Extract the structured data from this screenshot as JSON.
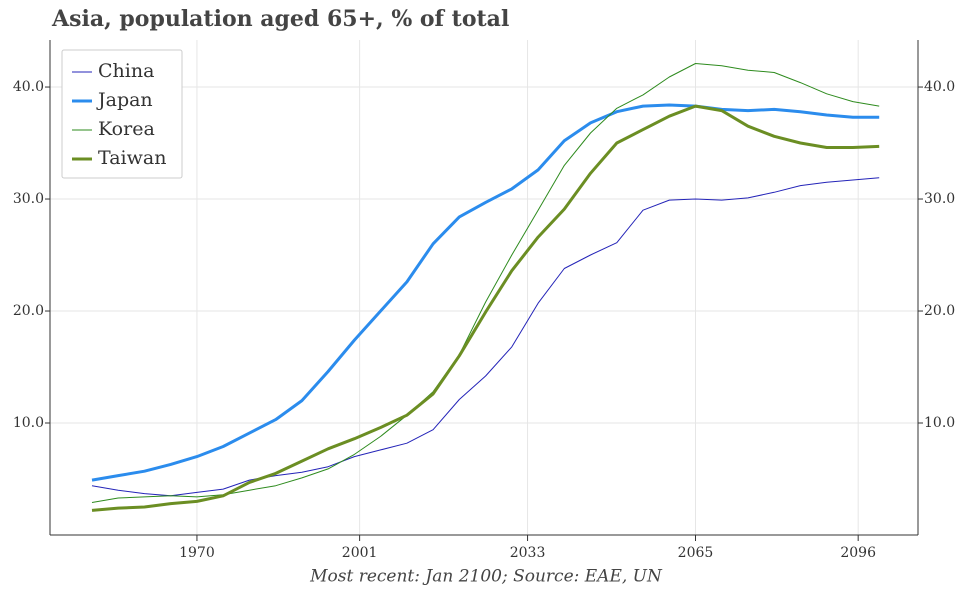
{
  "chart_data": {
    "type": "line",
    "title": "Asia, population aged 65+, % of total",
    "footnote": "Most recent: Jan 2100; Source: EAE, UN",
    "x": [
      1950,
      1955,
      1960,
      1965,
      1970,
      1975,
      1980,
      1985,
      1990,
      1995,
      2000,
      2005,
      2010,
      2015,
      2020,
      2025,
      2030,
      2035,
      2040,
      2045,
      2050,
      2055,
      2060,
      2065,
      2070,
      2075,
      2080,
      2085,
      2090,
      2095,
      2100
    ],
    "series": [
      {
        "name": "China",
        "color": "#2424b8",
        "width": 1,
        "values": [
          4.4,
          4.0,
          3.7,
          3.5,
          3.8,
          4.1,
          4.9,
          5.3,
          5.6,
          6.1,
          7.0,
          7.6,
          8.2,
          9.4,
          12.1,
          14.2,
          16.8,
          20.7,
          23.8,
          25.0,
          26.1,
          29.0,
          29.9,
          30.0,
          29.9,
          30.1,
          30.6,
          31.2,
          31.5,
          31.7,
          31.9
        ]
      },
      {
        "name": "Japan",
        "color": "#2b8ced",
        "width": 3,
        "values": [
          4.9,
          5.3,
          5.7,
          6.3,
          7.0,
          7.9,
          9.1,
          10.3,
          12.0,
          14.6,
          17.4,
          20.0,
          22.6,
          26.0,
          28.4,
          29.7,
          30.9,
          32.6,
          35.2,
          36.8,
          37.8,
          38.3,
          38.4,
          38.3,
          38.0,
          37.9,
          38.0,
          37.8,
          37.5,
          37.3,
          37.3
        ]
      },
      {
        "name": "Korea",
        "color": "#2e8b1e",
        "width": 1,
        "values": [
          2.9,
          3.3,
          3.4,
          3.5,
          3.4,
          3.6,
          4.0,
          4.4,
          5.1,
          5.9,
          7.2,
          8.8,
          10.7,
          12.8,
          16.1,
          20.8,
          25.0,
          29.0,
          33.0,
          35.9,
          38.1,
          39.3,
          40.9,
          42.1,
          41.9,
          41.5,
          41.3,
          40.4,
          39.4,
          38.7,
          38.3
        ]
      },
      {
        "name": "Taiwan",
        "color": "#6b8e23",
        "width": 3,
        "values": [
          2.2,
          2.4,
          2.5,
          2.8,
          3.0,
          3.5,
          4.7,
          5.5,
          6.6,
          7.7,
          8.6,
          9.6,
          10.7,
          12.6,
          16.0,
          19.9,
          23.6,
          26.6,
          29.1,
          32.3,
          35.0,
          36.2,
          37.4,
          38.3,
          37.9,
          36.5,
          35.6,
          35.0,
          34.6,
          34.6,
          34.7
        ]
      }
    ],
    "xlim": [
      1942,
      2107.4
    ],
    "xticks": [
      1970,
      2001,
      2033,
      2065,
      2096
    ],
    "ylim": [
      0,
      44.2
    ],
    "yticks": [
      {
        "value": 10,
        "label": "10.0"
      },
      {
        "value": 20,
        "label": "20.0"
      },
      {
        "value": 30,
        "label": "30.0"
      },
      {
        "value": 40,
        "label": "40.0"
      }
    ],
    "grid": true,
    "legend": "upper left",
    "mirror_y_axis": true
  }
}
